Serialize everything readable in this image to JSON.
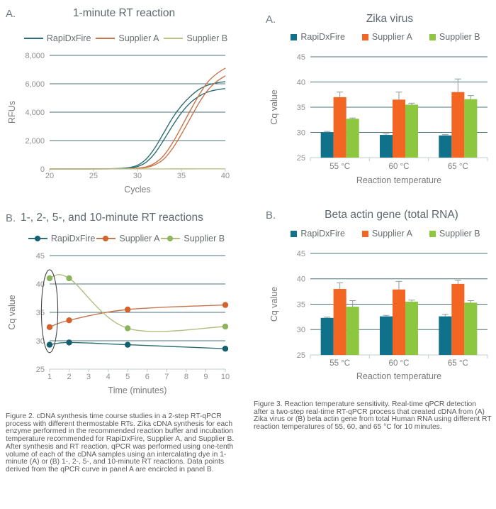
{
  "colors": {
    "grid": "#4e737b",
    "axis_baseline": "#c3cccc",
    "error_bar": "#8d9a9b",
    "annotation": "#454545",
    "rapidxfire_bar": "#10718c",
    "supplier_a_bar": "#f26522",
    "supplier_b_bar": "#8dc63f"
  },
  "left": {
    "panel_a": {
      "label": "A.",
      "title": "1-minute RT reaction",
      "legend": [
        {
          "label": "RapiDxFire",
          "line": "#2d6e76"
        },
        {
          "label": "Supplier A",
          "line": "#c9754b"
        },
        {
          "label": "Supplier B",
          "line": "#b8c485"
        }
      ]
    },
    "panel_b": {
      "label": "B.",
      "title": "1-, 2-, 5-, and 10-minute RT reactions",
      "legend": [
        {
          "label": "RapiDxFire",
          "line": "#2d6e76",
          "marker": "#14606e"
        },
        {
          "label": "Supplier A",
          "line": "#c5764e",
          "marker": "#d2622e"
        },
        {
          "label": "Supplier B",
          "line": "#b2bd80",
          "marker": "#8cb45e"
        }
      ]
    },
    "caption": "Figure 2. cDNA synthesis time course studies in a 2-step RT-qPCR process with different thermostable RTs. Zika cDNA synthesis for each enzyme performed in the recommended reaction buffer and incubation temperature recommended for RapiDxFire, Supplier A, and Supplier B. After synthesis and RT reaction, qPCR was performed using one-tenth volume of each of the cDNA samples using an intercalating dye in 1-minute (A) or (B) 1-, 2-, 5-, and 10-minute RT reactions. Data points derived from the qPCR curve in panel A are encircled in panel B."
  },
  "right": {
    "panel_a": {
      "label": "A.",
      "title": "Zika virus",
      "legend": [
        {
          "label": "RapiDxFire",
          "fill": "#10718c"
        },
        {
          "label": "Supplier A",
          "fill": "#f26522"
        },
        {
          "label": "Supplier B",
          "fill": "#8dc63f"
        }
      ]
    },
    "panel_b": {
      "label": "B.",
      "title": "Beta actin gene (total RNA)",
      "legend": [
        {
          "label": "RapiDxFire",
          "fill": "#10718c"
        },
        {
          "label": "Supplier A",
          "fill": "#f26522"
        },
        {
          "label": "Supplier B",
          "fill": "#8dc63f"
        }
      ]
    },
    "caption": "Figure 3. Reaction temperature sensitivity. Real-time qPCR detection after a two-step real-time RT-qPCR process that created cDNA from (A) Zika virus or (B) beta actin gene from total Human RNA using different RT reaction temperatures of 55, 60, and 65 °C for 10 minutes."
  },
  "chart_data": [
    {
      "type": "line",
      "title": "1-minute RT reaction",
      "xlabel": "Cycles",
      "ylabel": "RFUs",
      "xlim": [
        20,
        40
      ],
      "ylim": [
        0,
        8000
      ],
      "xticks": [
        20,
        25,
        30,
        35,
        40
      ],
      "xtick_labels": [
        "20",
        "25",
        "30",
        "35",
        "40"
      ],
      "yticks": [
        0,
        2000,
        4000,
        6000,
        8000
      ],
      "ytick_labels": [
        "0",
        "2,000",
        "4,000",
        "6,000",
        "8,000"
      ],
      "grid": true,
      "legend_position": "top",
      "x_start": 20,
      "x_step": 1,
      "series": [
        {
          "name": "RapiDxFire",
          "color": "#2d6e76",
          "traces": [
            [
              5,
              5,
              5,
              5,
              5,
              8,
              12,
              18,
              35,
              90,
              260,
              700,
              1500,
              2550,
              3600,
              4450,
              5100,
              5600,
              5900,
              6060,
              6150
            ],
            [
              5,
              5,
              5,
              5,
              5,
              6,
              9,
              14,
              25,
              60,
              170,
              480,
              1120,
              2050,
              3050,
              3950,
              4650,
              5120,
              5420,
              5570,
              5660
            ]
          ]
        },
        {
          "name": "Supplier A",
          "color": "#c9754b",
          "traces": [
            [
              5,
              5,
              5,
              5,
              5,
              5,
              6,
              8,
              12,
              25,
              60,
              150,
              420,
              950,
              1850,
              2950,
              4100,
              5200,
              6120,
              6700,
              7100
            ],
            [
              5,
              5,
              5,
              5,
              5,
              5,
              5,
              7,
              10,
              18,
              42,
              105,
              300,
              700,
              1450,
              2450,
              3550,
              4650,
              5550,
              6150,
              6560
            ]
          ]
        },
        {
          "name": "Supplier B",
          "color": "#b8c485",
          "traces": [
            [
              4,
              4,
              4,
              4,
              4,
              4,
              4,
              4,
              4,
              4,
              5,
              5,
              5,
              5,
              6,
              6,
              6,
              7,
              7,
              8,
              8
            ]
          ]
        }
      ]
    },
    {
      "type": "line",
      "title": "1-, 2-, 5-, and 10-minute RT reactions",
      "xlabel": "Time (minutes)",
      "ylabel": "Cq value",
      "xlim": [
        1,
        10
      ],
      "ylim": [
        25,
        45
      ],
      "xticks": [
        1,
        2,
        3,
        4,
        5,
        6,
        7,
        8,
        9,
        10
      ],
      "xtick_labels": [
        "1",
        "2",
        "3",
        "4",
        "5",
        "6",
        "7",
        "8",
        "9",
        "10"
      ],
      "yticks": [
        25,
        30,
        35,
        40,
        45
      ],
      "ytick_labels": [
        "25",
        "30",
        "35",
        "40",
        "45"
      ],
      "grid": true,
      "legend_position": "top",
      "series": [
        {
          "name": "RapiDxFire",
          "line": "#2d6e76",
          "marker": "#14606e",
          "x": [
            1,
            2,
            5,
            10
          ],
          "y": [
            29.3,
            29.7,
            29.3,
            28.6
          ]
        },
        {
          "name": "Supplier A",
          "line": "#c5764e",
          "marker": "#d2622e",
          "x": [
            1,
            2,
            5,
            10
          ],
          "y": [
            32.4,
            33.6,
            35.5,
            36.3
          ]
        },
        {
          "name": "Supplier B",
          "line": "#b2bd80",
          "marker": "#8cb45e",
          "x": [
            1,
            2,
            5,
            10
          ],
          "y": [
            41.0,
            41.0,
            32.2,
            32.5
          ]
        }
      ],
      "annotation": {
        "shape": "ellipse",
        "note": "1-minute points encircled",
        "cx": 1,
        "cy": 35.2,
        "rx": 0.42,
        "ry": 7.3,
        "color": "#454545"
      }
    },
    {
      "type": "bar",
      "title": "Zika virus",
      "xlabel": "Reaction temperature",
      "ylabel": "Cq value",
      "ylim": [
        25,
        45
      ],
      "yticks": [
        25,
        30,
        35,
        40,
        45
      ],
      "ytick_labels": [
        "25",
        "30",
        "35",
        "40",
        "45"
      ],
      "grid": true,
      "legend_position": "top",
      "categories": [
        "55 °C",
        "60 °C",
        "65 °C"
      ],
      "series": [
        {
          "name": "RapiDxFire",
          "color": "#10718c",
          "values": [
            30.0,
            29.5,
            29.4
          ],
          "errors": [
            0.2,
            0.2,
            0.15
          ]
        },
        {
          "name": "Supplier A",
          "color": "#f26522",
          "values": [
            37.0,
            36.5,
            38.0
          ],
          "errors": [
            1.0,
            1.5,
            2.6
          ]
        },
        {
          "name": "Supplier B",
          "color": "#8dc63f",
          "values": [
            32.7,
            35.5,
            36.6
          ],
          "errors": [
            0.15,
            0.3,
            0.7
          ]
        }
      ]
    },
    {
      "type": "bar",
      "title": "Beta actin gene (total RNA)",
      "xlabel": "Reaction temperature",
      "ylabel": "Cq value",
      "ylim": [
        25,
        45
      ],
      "yticks": [
        25,
        30,
        35,
        40,
        45
      ],
      "ytick_labels": [
        "25",
        "30",
        "35",
        "40",
        "45"
      ],
      "grid": true,
      "legend_position": "top",
      "categories": [
        "55 °C",
        "60 °C",
        "65 °C"
      ],
      "series": [
        {
          "name": "RapiDxFire",
          "color": "#10718c",
          "values": [
            32.3,
            32.6,
            32.6
          ],
          "errors": [
            0.15,
            0.2,
            0.4
          ]
        },
        {
          "name": "Supplier A",
          "color": "#f26522",
          "values": [
            38.0,
            37.9,
            39.0
          ],
          "errors": [
            1.2,
            1.6,
            0.7
          ]
        },
        {
          "name": "Supplier B",
          "color": "#8dc63f",
          "values": [
            34.5,
            35.5,
            35.3
          ],
          "errors": [
            1.2,
            0.3,
            0.4
          ]
        }
      ]
    }
  ]
}
